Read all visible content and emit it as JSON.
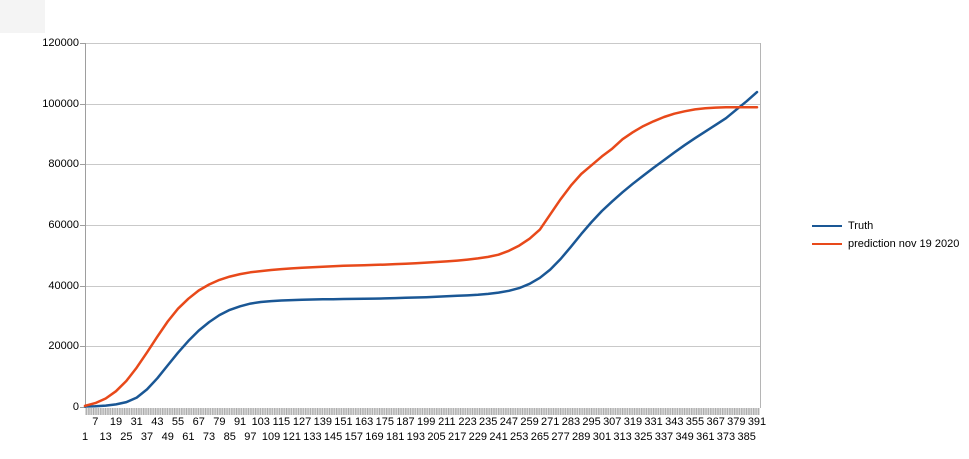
{
  "chart_data": {
    "type": "line",
    "title": "",
    "xlabel": "",
    "ylabel": "",
    "ylim": [
      0,
      120000
    ],
    "yticks": [
      0,
      20000,
      40000,
      60000,
      80000,
      100000,
      120000
    ],
    "ytick_labels": [
      "0",
      "20000",
      "40000",
      "60000",
      "80000",
      "100000",
      "120000"
    ],
    "xlim": [
      1,
      391
    ],
    "xtick_row_upper": [
      7,
      19,
      31,
      43,
      55,
      67,
      79,
      91,
      103,
      115,
      127,
      139,
      151,
      163,
      175,
      187,
      199,
      211,
      223,
      235,
      247,
      259,
      271,
      283,
      295,
      307,
      319,
      331,
      343,
      355,
      367,
      379,
      391
    ],
    "xtick_row_lower": [
      1,
      13,
      25,
      37,
      49,
      61,
      73,
      85,
      97,
      109,
      121,
      133,
      145,
      157,
      169,
      181,
      193,
      205,
      217,
      229,
      241,
      253,
      265,
      277,
      289,
      301,
      313,
      325,
      337,
      349,
      361,
      373,
      385
    ],
    "grid": true,
    "legend_position": "right",
    "x": [
      1,
      7,
      13,
      19,
      25,
      31,
      37,
      43,
      49,
      55,
      61,
      67,
      73,
      79,
      85,
      91,
      97,
      103,
      109,
      115,
      121,
      127,
      133,
      139,
      145,
      151,
      157,
      163,
      169,
      175,
      181,
      187,
      193,
      199,
      205,
      211,
      217,
      223,
      229,
      235,
      241,
      247,
      253,
      259,
      265,
      271,
      277,
      283,
      289,
      295,
      301,
      307,
      313,
      319,
      325,
      331,
      337,
      343,
      349,
      355,
      361,
      367,
      373,
      379,
      385,
      391
    ],
    "series": [
      {
        "name": "Truth",
        "color": "#1a5795",
        "values": [
          150,
          250,
          450,
          850,
          1600,
          3100,
          5800,
          9500,
          13700,
          17900,
          21800,
          25200,
          28000,
          30300,
          32000,
          33200,
          34100,
          34600,
          34900,
          35100,
          35250,
          35350,
          35450,
          35500,
          35550,
          35600,
          35650,
          35700,
          35750,
          35800,
          35900,
          36000,
          36100,
          36200,
          36350,
          36500,
          36650,
          36800,
          37000,
          37300,
          37700,
          38300,
          39200,
          40600,
          42600,
          45300,
          48800,
          52800,
          57000,
          61000,
          64600,
          67800,
          70800,
          73600,
          76300,
          78900,
          81400,
          83900,
          86300,
          88600,
          90800,
          93000,
          95200,
          98000,
          100800,
          103800
        ]
      },
      {
        "name": "prediction nov 19 2020",
        "color": "#e8491a",
        "values": [
          400,
          1300,
          2800,
          5200,
          8600,
          13000,
          18000,
          23200,
          28200,
          32400,
          35700,
          38400,
          40400,
          41900,
          43000,
          43800,
          44400,
          44800,
          45150,
          45450,
          45700,
          45900,
          46100,
          46250,
          46400,
          46550,
          46650,
          46750,
          46850,
          46950,
          47100,
          47250,
          47400,
          47600,
          47800,
          48000,
          48250,
          48600,
          49000,
          49500,
          50200,
          51500,
          53200,
          55500,
          58500,
          63500,
          68500,
          73000,
          76800,
          79700,
          82600,
          85200,
          88300,
          90600,
          92600,
          94200,
          95600,
          96700,
          97500,
          98100,
          98500,
          98700,
          98800,
          98850,
          98850,
          98850
        ]
      }
    ],
    "colors": {
      "gridline": "#c9c9c9",
      "axis": "#9e9e9e",
      "plot_border": "#b5b5b5",
      "tick_band_dark": "#9a9a9a",
      "tick_band_light": "#e4e4e4"
    }
  },
  "legend": {
    "items": [
      {
        "label": "Truth"
      },
      {
        "label": "prediction nov 19 2020"
      }
    ]
  }
}
